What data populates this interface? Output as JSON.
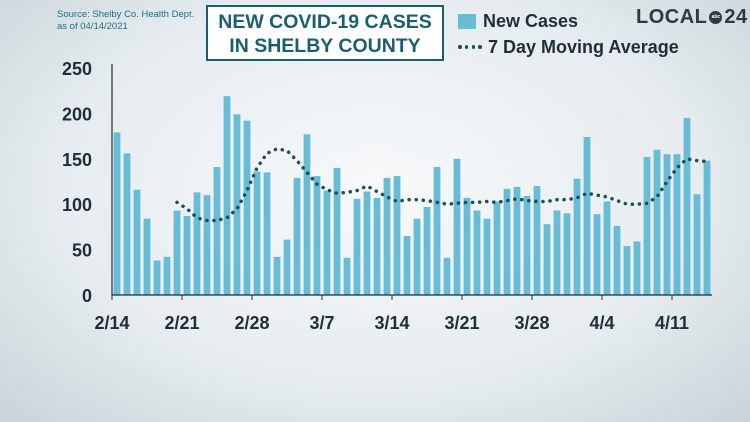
{
  "source": {
    "line1": "Source:  Shelby Co. Health Dept.",
    "line2": "as of 04/14/2021"
  },
  "title": {
    "line1": "NEW COVID-19 CASES",
    "line2": "IN SHELBY COUNTY"
  },
  "logo": {
    "prefix": "LOCAL",
    "mark": "abc",
    "suffix": "24"
  },
  "colors": {
    "bar": "#69bcd6",
    "avg_line": "#1d4f5a",
    "axis": "#1d2f38",
    "title": "#1a5f6e"
  },
  "chart_data": {
    "type": "bar",
    "title": "NEW COVID-19 CASES IN SHELBY COUNTY",
    "xlabel": "",
    "ylabel": "",
    "ylim": [
      0,
      250
    ],
    "yticks": [
      0,
      50,
      100,
      150,
      200,
      250
    ],
    "grid": false,
    "legend": "top-right",
    "xtick_labels": [
      {
        "index": 0,
        "label": "2/14"
      },
      {
        "index": 7,
        "label": "2/21"
      },
      {
        "index": 14,
        "label": "2/28"
      },
      {
        "index": 21,
        "label": "3/7"
      },
      {
        "index": 28,
        "label": "3/14"
      },
      {
        "index": 35,
        "label": "3/21"
      },
      {
        "index": 42,
        "label": "3/28"
      },
      {
        "index": 49,
        "label": "4/4"
      },
      {
        "index": 56,
        "label": "4/11"
      }
    ],
    "series": [
      {
        "name": "New Cases",
        "type": "bar",
        "values": [
          179,
          156,
          116,
          84,
          38,
          42,
          93,
          87,
          113,
          110,
          141,
          219,
          199,
          192,
          136,
          135,
          42,
          61,
          129,
          177,
          131,
          115,
          140,
          41,
          106,
          114,
          107,
          129,
          131,
          65,
          84,
          97,
          141,
          41,
          150,
          107,
          93,
          84,
          103,
          117,
          119,
          109,
          120,
          78,
          93,
          90,
          128,
          174,
          89,
          103,
          76,
          54,
          59,
          152,
          160,
          155,
          155,
          195,
          111,
          148
        ]
      },
      {
        "name": "7 Day Moving Average",
        "type": "line",
        "start_index": 6,
        "values": [
          102,
          95,
          85,
          82,
          82,
          85,
          95,
          115,
          140,
          156,
          161,
          159,
          148,
          135,
          122,
          116,
          112,
          113,
          115,
          120,
          114,
          108,
          103,
          105,
          105,
          104,
          102,
          100,
          101,
          102,
          102,
          103,
          102,
          104,
          106,
          104,
          103,
          103,
          105,
          105,
          107,
          112,
          110,
          108,
          104,
          100,
          100,
          101,
          108,
          125,
          140,
          150,
          148,
          147
        ]
      }
    ]
  }
}
